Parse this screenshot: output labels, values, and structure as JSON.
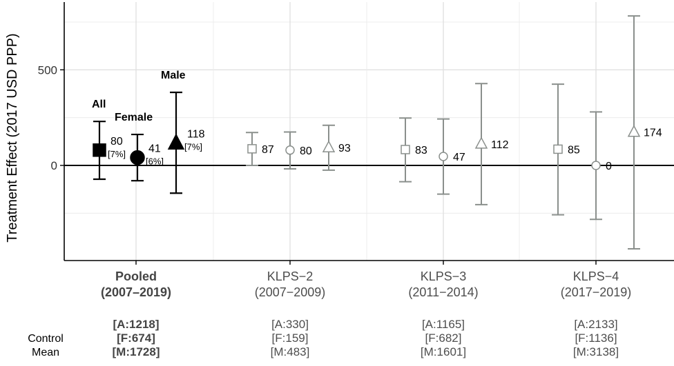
{
  "chart_data": {
    "type": "errorbar",
    "ylabel": "Treatment Effect (2017 USD PPP)",
    "y_ticks": [
      0,
      500
    ],
    "ylim": [
      -500,
      860
    ],
    "grid": true,
    "reference_line": 0,
    "groups": [
      {
        "name": "Pooled",
        "period": "(2007–2019)",
        "bold": true,
        "control_means": [
          "[A:1218]",
          "[F:674]",
          "[M:1728]"
        ],
        "points": [
          {
            "series": "All",
            "label": "All",
            "marker": "square",
            "filled": true,
            "estimate": 80,
            "ci_low": -72,
            "ci_high": 230,
            "value_label": "80",
            "pct_label": "[7%]"
          },
          {
            "series": "Female",
            "label": "Female",
            "marker": "circle",
            "filled": true,
            "estimate": 41,
            "ci_low": -80,
            "ci_high": 162,
            "value_label": "41",
            "pct_label": "[6%]"
          },
          {
            "series": "Male",
            "label": "Male",
            "marker": "triangle",
            "filled": true,
            "estimate": 118,
            "ci_low": -145,
            "ci_high": 382,
            "value_label": "118",
            "pct_label": "[7%]"
          }
        ]
      },
      {
        "name": "KLPS−2",
        "period": "(2007−2009)",
        "bold": false,
        "control_means": [
          "[A:330]",
          "[F:159]",
          "[M:483]"
        ],
        "points": [
          {
            "series": "All",
            "marker": "square",
            "filled": false,
            "estimate": 87,
            "ci_low": 0,
            "ci_high": 172,
            "value_label": "87"
          },
          {
            "series": "Female",
            "marker": "circle",
            "filled": false,
            "estimate": 80,
            "ci_low": -18,
            "ci_high": 175,
            "value_label": "80"
          },
          {
            "series": "Male",
            "marker": "triangle",
            "filled": false,
            "estimate": 93,
            "ci_low": -25,
            "ci_high": 210,
            "value_label": "93"
          }
        ]
      },
      {
        "name": "KLPS−3",
        "period": "(2011−2014)",
        "bold": false,
        "control_means": [
          "[A:1165]",
          "[F:682]",
          "[M:1601]"
        ],
        "points": [
          {
            "series": "All",
            "marker": "square",
            "filled": false,
            "estimate": 83,
            "ci_low": -85,
            "ci_high": 248,
            "value_label": "83"
          },
          {
            "series": "Female",
            "marker": "circle",
            "filled": false,
            "estimate": 47,
            "ci_low": -150,
            "ci_high": 243,
            "value_label": "47"
          },
          {
            "series": "Male",
            "marker": "triangle",
            "filled": false,
            "estimate": 112,
            "ci_low": -205,
            "ci_high": 428,
            "value_label": "112"
          }
        ]
      },
      {
        "name": "KLPS−4",
        "period": "(2017−2019)",
        "bold": false,
        "control_means": [
          "[A:2133]",
          "[F:1136]",
          "[M:3138]"
        ],
        "points": [
          {
            "series": "All",
            "marker": "square",
            "filled": false,
            "estimate": 85,
            "ci_low": -258,
            "ci_high": 425,
            "value_label": "85"
          },
          {
            "series": "Female",
            "marker": "circle",
            "filled": false,
            "estimate": 0,
            "ci_low": -282,
            "ci_high": 280,
            "value_label": "0"
          },
          {
            "series": "Male",
            "marker": "triangle",
            "filled": false,
            "estimate": 174,
            "ci_low": -436,
            "ci_high": 782,
            "value_label": "174"
          }
        ]
      }
    ],
    "control_mean_label": [
      "Control",
      "Mean"
    ]
  }
}
